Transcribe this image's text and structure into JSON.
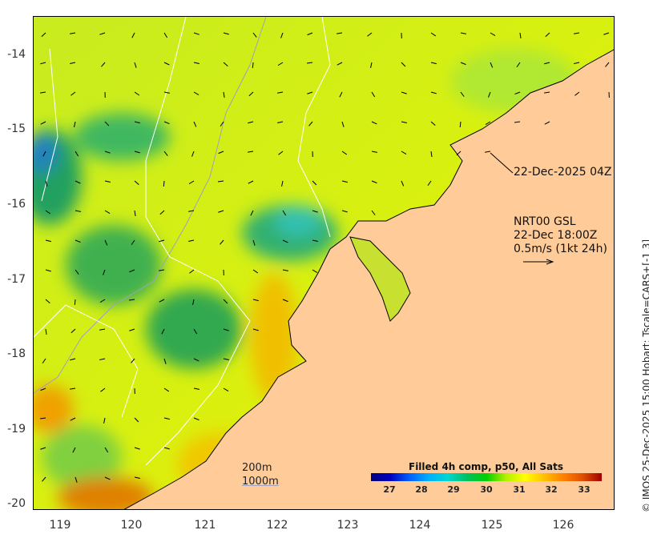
{
  "map": {
    "x_ticks": [
      "119",
      "120",
      "121",
      "122",
      "123",
      "124",
      "125",
      "126"
    ],
    "y_ticks": [
      "-14",
      "-15",
      "-16",
      "-17",
      "-18",
      "-19",
      "-20"
    ],
    "image_time": "22-Dec-2025 04Z",
    "current_source": "NRT00 GSL",
    "current_time": "22-Dec 18:00Z",
    "current_scale": "0.5m/s (1kt 24h)",
    "depth_200": "200m",
    "depth_1000": "1000m",
    "side_label": "© IMOS 25-Dec-2025 15:00 Hobart; Tscale=CARS+[-1 3]",
    "land_color": "#ffcc99"
  },
  "colorbar": {
    "title": "Filled 4h comp, p50, All Sats",
    "ticks": [
      "27",
      "28",
      "29",
      "30",
      "31",
      "32",
      "33"
    ],
    "range": [
      26.4,
      33.6
    ]
  }
}
